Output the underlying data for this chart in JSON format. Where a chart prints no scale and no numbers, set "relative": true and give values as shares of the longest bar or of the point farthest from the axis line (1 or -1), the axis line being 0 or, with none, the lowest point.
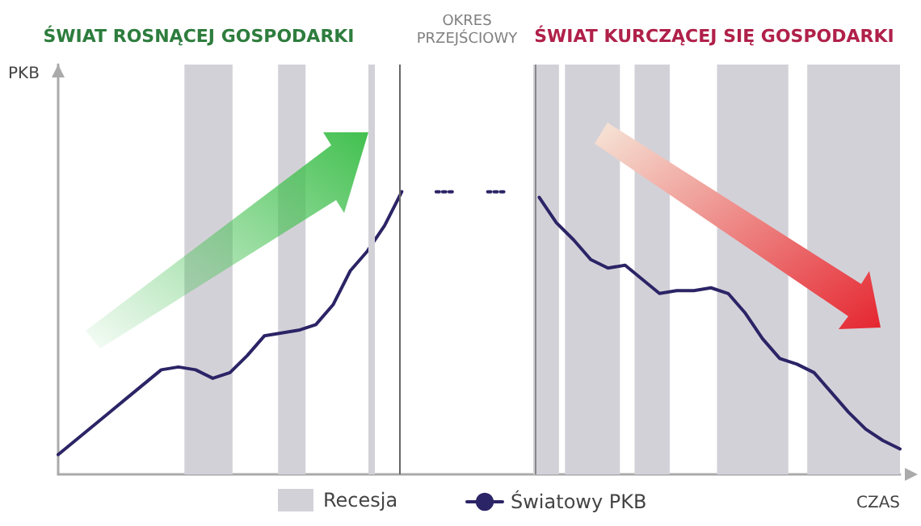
{
  "chart_data": {
    "type": "line",
    "relative": true,
    "categories": [
      null,
      null,
      null,
      null,
      null,
      null,
      null,
      null,
      null,
      null,
      null,
      null,
      null,
      null,
      null,
      null,
      null,
      null,
      null,
      null,
      null,
      null,
      null,
      null,
      null,
      null,
      null,
      null,
      null,
      null,
      null,
      null,
      null,
      null,
      null,
      null,
      null,
      null,
      null,
      null,
      null,
      null,
      null,
      null,
      null,
      null,
      null,
      null,
      null,
      null
    ],
    "tick_labels": false,
    "grid": false,
    "legend": "bottom",
    "marker": "none",
    "xlabel": "CZAS",
    "annotations": [
      "ŚWIAT ROSNĄCEJ GOSPODARKI",
      "OKRES\nPRZEJŚCIOWY",
      "ŚWIAT KURCZĄCEJ SIĘ GOSPODARKI",
      "PKB",
      "Recesja"
    ],
    "series": [
      {
        "name": "Światowy PKB",
        "color": "#2b2466",
        "line_style": "solid",
        "values": [
          0.07,
          0.12,
          0.17,
          0.22,
          0.27,
          0.32,
          0.37,
          0.38,
          0.37,
          0.34,
          0.36,
          0.42,
          0.49,
          0.5,
          0.51,
          0.53,
          0.6,
          0.72,
          0.79,
          0.88,
          1.0,
          null,
          null,
          null,
          null,
          null,
          null,
          null,
          null,
          null,
          null,
          null,
          null,
          null,
          null,
          null,
          null,
          null,
          null,
          null,
          null,
          null,
          null,
          null,
          null,
          null,
          null,
          null,
          null,
          null
        ]
      },
      {
        "color": "#2b2466",
        "line_style": "solid",
        "values": [
          null,
          null,
          null,
          null,
          null,
          null,
          null,
          null,
          null,
          null,
          null,
          null,
          null,
          null,
          null,
          null,
          null,
          null,
          null,
          null,
          null,
          null,
          null,
          null,
          null,
          null,
          null,
          null,
          0.98,
          0.89,
          0.83,
          0.76,
          0.73,
          0.74,
          0.69,
          0.64,
          0.65,
          0.65,
          0.66,
          0.64,
          0.57,
          0.48,
          0.41,
          0.39,
          0.36,
          0.29,
          0.22,
          0.16,
          0.12,
          0.09
        ]
      },
      {
        "color": "#2b2466",
        "line_style": "dotted",
        "values": [
          null,
          null,
          null,
          null,
          null,
          null,
          null,
          null,
          null,
          null,
          null,
          null,
          null,
          null,
          null,
          null,
          null,
          null,
          null,
          null,
          null,
          null,
          1.0,
          1.0,
          null,
          1.0,
          1.0,
          null,
          null,
          null,
          null,
          null,
          null,
          null,
          null,
          null,
          null,
          null,
          null,
          null,
          null,
          null,
          null,
          null,
          null,
          null,
          null,
          null,
          null,
          null
        ]
      }
    ]
  }
}
